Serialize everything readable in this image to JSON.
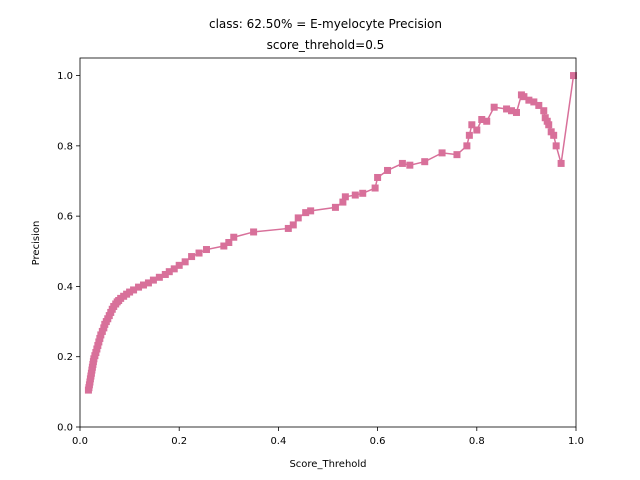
{
  "chart_data": {
    "type": "line",
    "title": "class: 62.50% = E-myelocyte Precision",
    "subtitle": "score_threhold=0.5",
    "xlabel": "Score_Threhold",
    "ylabel": "Precision",
    "xlim": [
      0.0,
      1.0
    ],
    "ylim": [
      0.0,
      1.05
    ],
    "xticks": [
      "0.0",
      "0.2",
      "0.4",
      "0.6",
      "0.8",
      "1.0"
    ],
    "yticks": [
      "0.0",
      "0.2",
      "0.4",
      "0.6",
      "0.8",
      "1.0"
    ],
    "grid": false,
    "marker": "square",
    "color": "#d8709a",
    "series": [
      {
        "x": [
          0.017,
          0.018,
          0.019,
          0.02,
          0.021,
          0.022,
          0.023,
          0.024,
          0.025,
          0.026,
          0.027,
          0.028,
          0.03,
          0.032,
          0.034,
          0.036,
          0.038,
          0.04,
          0.042,
          0.045,
          0.048,
          0.05,
          0.053,
          0.056,
          0.059,
          0.062,
          0.065,
          0.068,
          0.072,
          0.075,
          0.078,
          0.082,
          0.088,
          0.094,
          0.1,
          0.108,
          0.118,
          0.128,
          0.138,
          0.148,
          0.16,
          0.172,
          0.18,
          0.19,
          0.2,
          0.212,
          0.225,
          0.24,
          0.255,
          0.29,
          0.3,
          0.31,
          0.35,
          0.42,
          0.43,
          0.44,
          0.455,
          0.465,
          0.515,
          0.53,
          0.535,
          0.555,
          0.57,
          0.595,
          0.6,
          0.62,
          0.65,
          0.665,
          0.695,
          0.73,
          0.76,
          0.78,
          0.785,
          0.79,
          0.8,
          0.81,
          0.82,
          0.835,
          0.86,
          0.87,
          0.88,
          0.89,
          0.895,
          0.905,
          0.915,
          0.925,
          0.935,
          0.938,
          0.942,
          0.945,
          0.95,
          0.955,
          0.96,
          0.97,
          0.995
        ],
        "y": [
          0.105,
          0.112,
          0.12,
          0.128,
          0.137,
          0.145,
          0.153,
          0.162,
          0.17,
          0.178,
          0.186,
          0.194,
          0.203,
          0.212,
          0.222,
          0.232,
          0.242,
          0.252,
          0.262,
          0.272,
          0.282,
          0.292,
          0.3,
          0.308,
          0.317,
          0.326,
          0.335,
          0.343,
          0.35,
          0.356,
          0.36,
          0.366,
          0.372,
          0.378,
          0.384,
          0.39,
          0.398,
          0.404,
          0.41,
          0.418,
          0.426,
          0.434,
          0.442,
          0.45,
          0.46,
          0.47,
          0.485,
          0.495,
          0.505,
          0.515,
          0.525,
          0.54,
          0.555,
          0.565,
          0.575,
          0.595,
          0.61,
          0.615,
          0.625,
          0.64,
          0.655,
          0.66,
          0.665,
          0.68,
          0.71,
          0.73,
          0.75,
          0.745,
          0.755,
          0.78,
          0.775,
          0.8,
          0.83,
          0.86,
          0.845,
          0.875,
          0.87,
          0.91,
          0.905,
          0.9,
          0.895,
          0.945,
          0.94,
          0.93,
          0.925,
          0.915,
          0.9,
          0.88,
          0.87,
          0.86,
          0.84,
          0.83,
          0.8,
          0.75,
          1.0
        ]
      }
    ]
  }
}
